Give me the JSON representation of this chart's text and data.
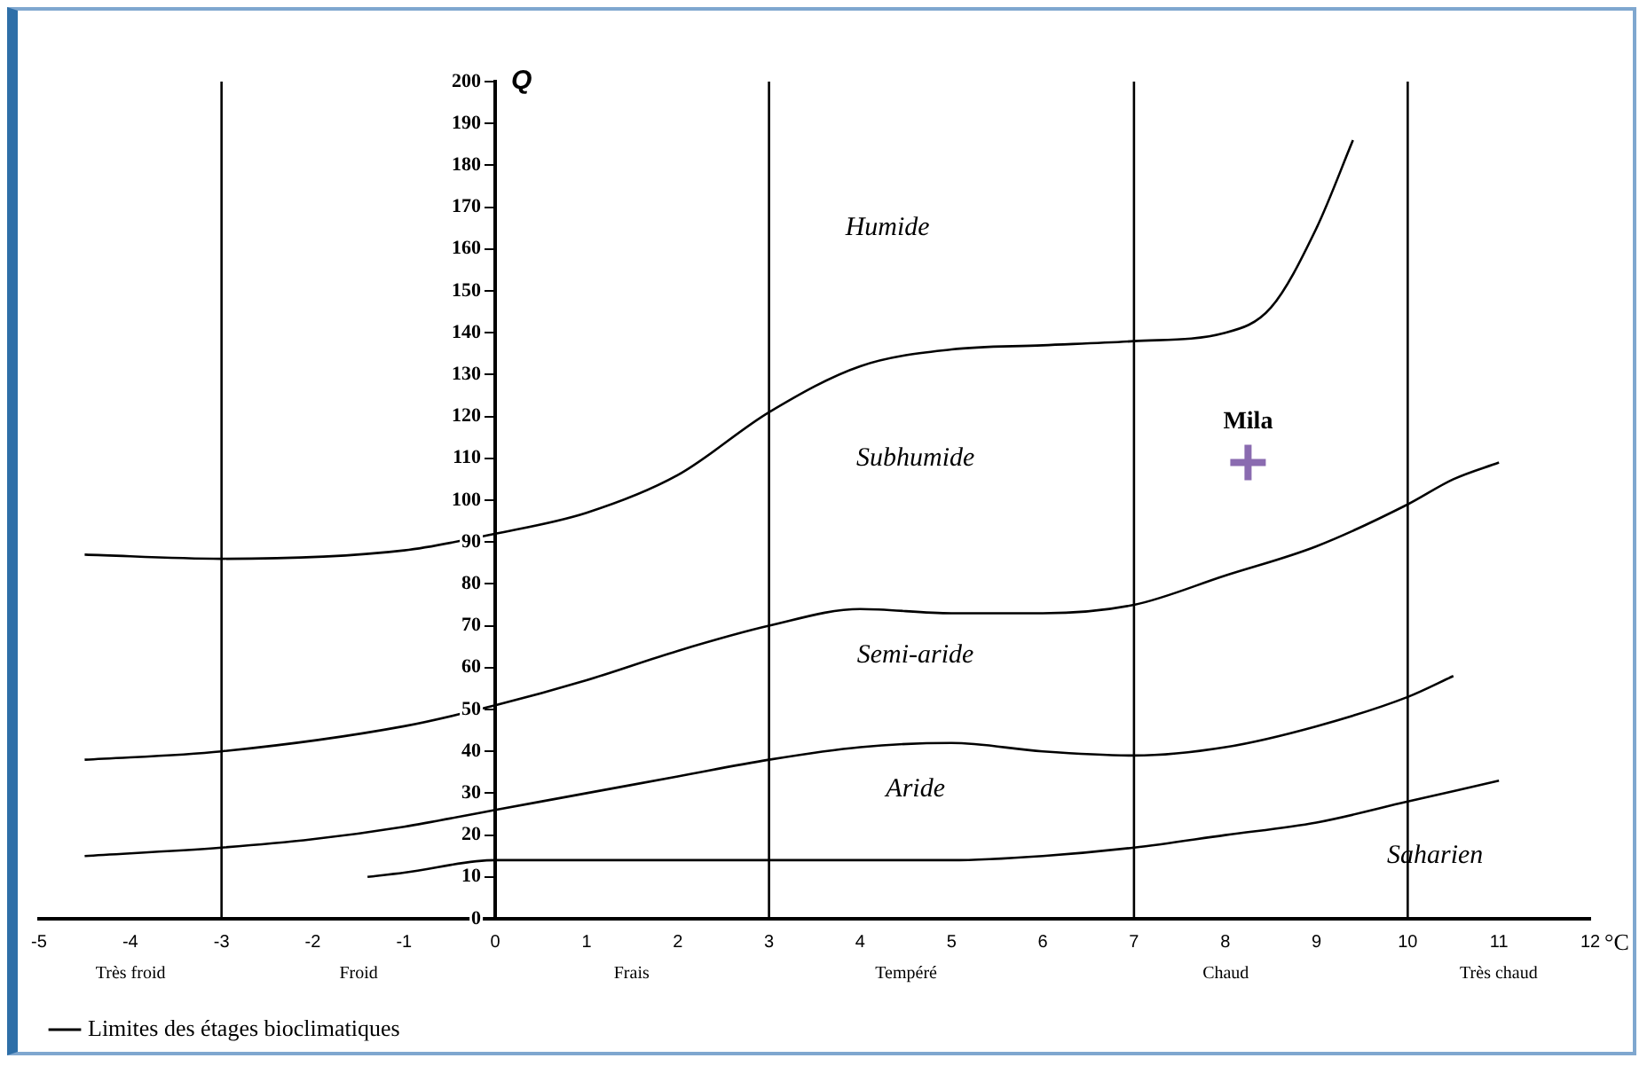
{
  "chart_data": {
    "type": "line",
    "xlabel": "°C",
    "ylabel": "Q",
    "xlim": [
      -5,
      12
    ],
    "ylim": [
      0,
      200
    ],
    "xticks": [
      -5,
      -4,
      -3,
      -2,
      -1,
      0,
      1,
      2,
      3,
      4,
      5,
      6,
      7,
      8,
      9,
      10,
      11,
      12
    ],
    "yticks": [
      0,
      10,
      20,
      30,
      40,
      50,
      60,
      70,
      80,
      90,
      100,
      110,
      120,
      130,
      140,
      150,
      160,
      170,
      180,
      190,
      200
    ],
    "grid": false,
    "legend": "bottom left",
    "marker": "none",
    "line_style": "solid",
    "series": [
      {
        "name": "Limites des étages bioclimatiques",
        "color": "#000000",
        "x": [
          -4.5,
          -3,
          -1,
          0,
          1,
          2,
          3,
          4,
          5,
          6,
          7,
          8,
          8.5,
          9,
          9.4
        ],
        "values": [
          87,
          86,
          88,
          92,
          97,
          106,
          121,
          132,
          136,
          137,
          138,
          140,
          146,
          165,
          186
        ]
      },
      {
        "color": "#000000",
        "x": [
          -4.5,
          -3,
          -1,
          0,
          1,
          2,
          3,
          4,
          5,
          6,
          7,
          8,
          9,
          10,
          10.5,
          11
        ],
        "values": [
          38,
          40,
          46,
          51,
          57,
          64,
          70,
          74,
          73,
          73,
          75,
          82,
          89,
          99,
          105,
          109
        ]
      },
      {
        "color": "#000000",
        "x": [
          -4.5,
          -3,
          -2,
          -1,
          0,
          1,
          2,
          3,
          4,
          5,
          6,
          7,
          8,
          9,
          10,
          10.5
        ],
        "values": [
          15,
          17,
          19,
          22,
          26,
          30,
          34,
          38,
          41,
          42,
          40,
          39,
          41,
          46,
          53,
          58
        ]
      },
      {
        "color": "#000000",
        "x": [
          -1.4,
          -1,
          0,
          1,
          2,
          3,
          4,
          5,
          6,
          7,
          8,
          9,
          10,
          11
        ],
        "values": [
          10,
          11,
          14,
          14,
          14,
          14,
          14,
          14,
          15,
          17,
          20,
          23,
          28,
          33
        ]
      },
      {
        "color": "#000000",
        "x": [
          -3,
          -3
        ],
        "values": [
          0,
          200
        ]
      },
      {
        "color": "#000000",
        "x": [
          3,
          3
        ],
        "values": [
          0,
          200
        ]
      },
      {
        "color": "#000000",
        "x": [
          7,
          7
        ],
        "values": [
          0,
          200
        ]
      },
      {
        "color": "#000000",
        "x": [
          10,
          10
        ],
        "values": [
          0,
          200
        ]
      },
      {
        "type": "scatter",
        "name": "Mila",
        "color": "#8a6bb0",
        "marker": "cross",
        "x": [
          8.25
        ],
        "values": [
          109
        ]
      }
    ],
    "annotations": [
      "Humide",
      "Subhumide",
      "Semi-aride",
      "Aride",
      "Saharien",
      "Très froid",
      "Froid",
      "Frais",
      "Tempéré",
      "Chaud",
      "Très chaud"
    ]
  }
}
